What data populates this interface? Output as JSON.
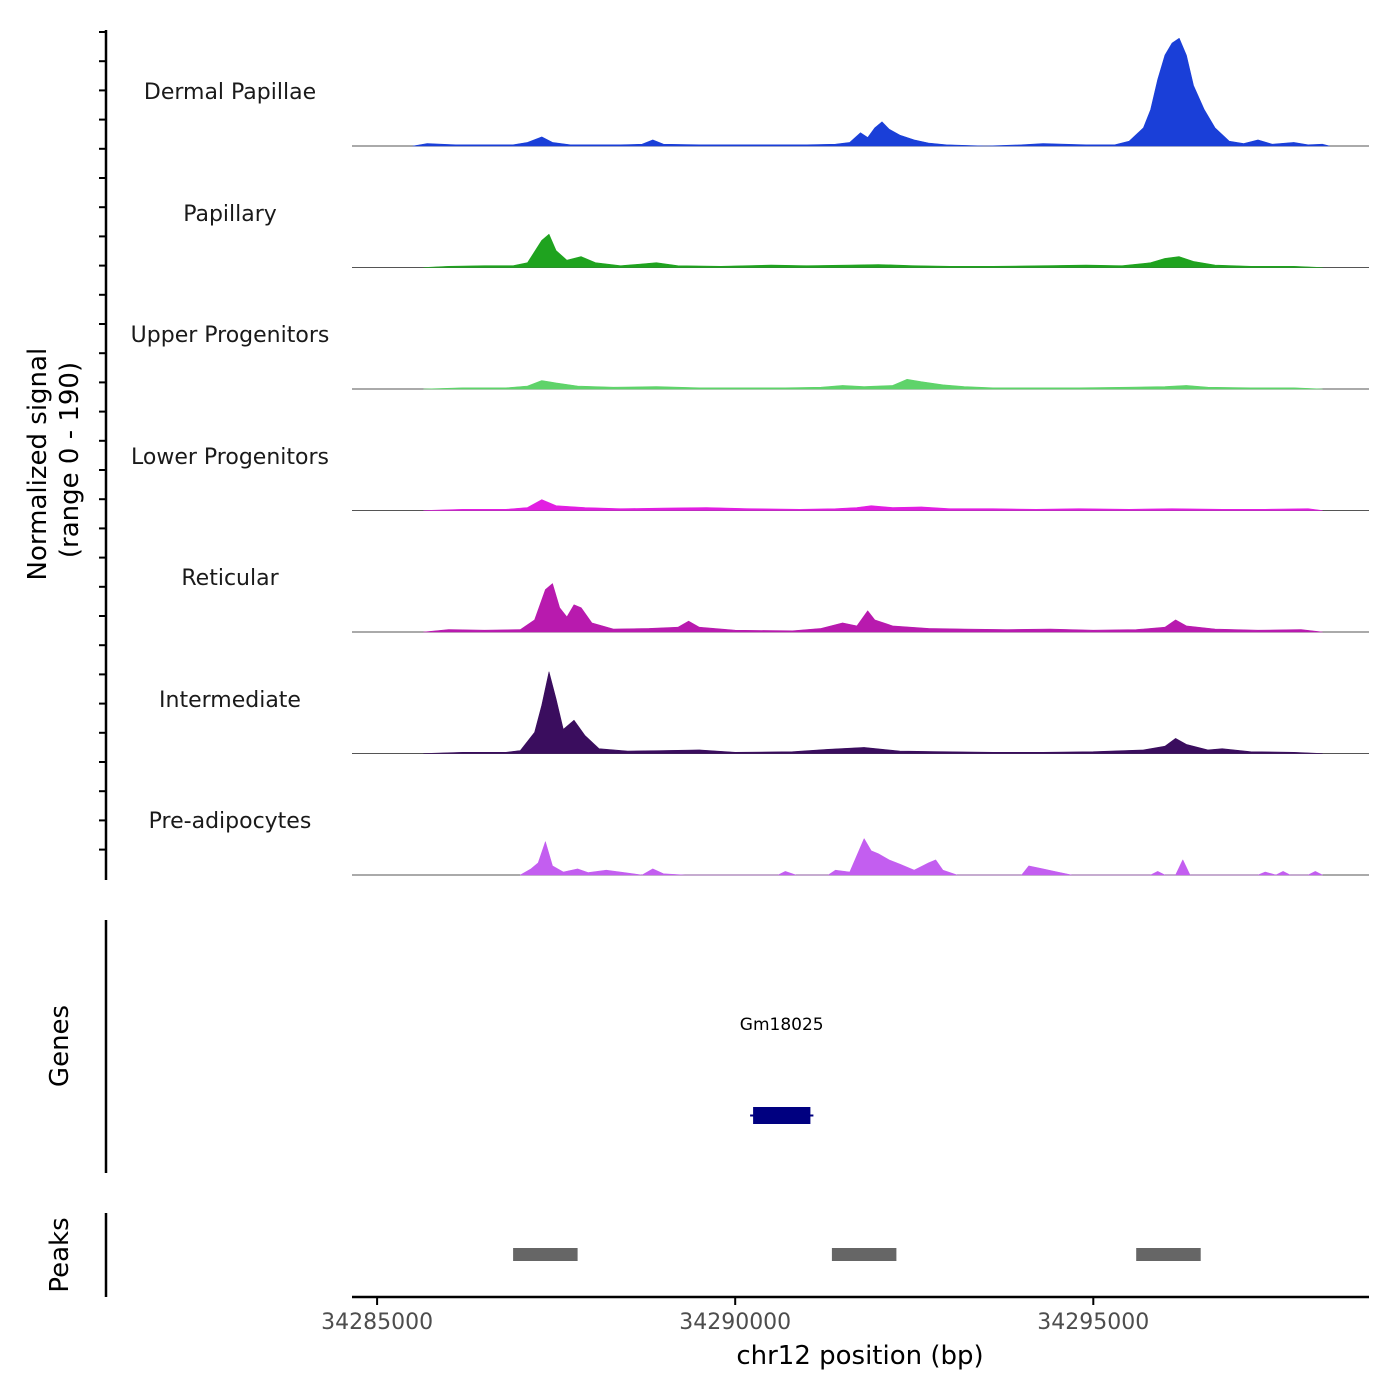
{
  "chart_data": {
    "type": "area",
    "title": "",
    "ylabel_line1": "Normalized signal",
    "ylabel_line2": "(range 0 - 190)",
    "xlabel": "chr12 position (bp)",
    "chromosome": "chr12",
    "xlim": [
      34284650,
      34298850
    ],
    "ylim": [
      0,
      190
    ],
    "x_ticks": [
      34285000,
      34290000,
      34295000
    ],
    "x_tick_labels": [
      "34285000",
      "34290000",
      "34295000"
    ],
    "tracks": [
      {
        "name": "Dermal Papillae",
        "color": "#1a3fd8",
        "points": [
          [
            34285500,
            0
          ],
          [
            34285700,
            4
          ],
          [
            34285900,
            3
          ],
          [
            34286100,
            2
          ],
          [
            34286500,
            2
          ],
          [
            34286900,
            2
          ],
          [
            34287100,
            6
          ],
          [
            34287300,
            15
          ],
          [
            34287450,
            6
          ],
          [
            34287700,
            2
          ],
          [
            34288000,
            2
          ],
          [
            34288400,
            2
          ],
          [
            34288700,
            3
          ],
          [
            34288850,
            10
          ],
          [
            34289000,
            3
          ],
          [
            34289500,
            2
          ],
          [
            34290000,
            2
          ],
          [
            34290500,
            2
          ],
          [
            34291000,
            2
          ],
          [
            34291400,
            3
          ],
          [
            34291600,
            6
          ],
          [
            34291750,
            22
          ],
          [
            34291850,
            14
          ],
          [
            34291950,
            30
          ],
          [
            34292050,
            40
          ],
          [
            34292150,
            28
          ],
          [
            34292300,
            18
          ],
          [
            34292500,
            10
          ],
          [
            34292700,
            5
          ],
          [
            34292950,
            2
          ],
          [
            34293500,
            0
          ],
          [
            34294000,
            2
          ],
          [
            34294300,
            4
          ],
          [
            34294600,
            3
          ],
          [
            34294900,
            2
          ],
          [
            34295300,
            2
          ],
          [
            34295500,
            8
          ],
          [
            34295700,
            30
          ],
          [
            34295800,
            60
          ],
          [
            34295900,
            110
          ],
          [
            34296000,
            150
          ],
          [
            34296100,
            170
          ],
          [
            34296200,
            178
          ],
          [
            34296300,
            150
          ],
          [
            34296400,
            100
          ],
          [
            34296550,
            60
          ],
          [
            34296700,
            30
          ],
          [
            34296900,
            8
          ],
          [
            34297100,
            4
          ],
          [
            34297300,
            10
          ],
          [
            34297500,
            3
          ],
          [
            34297800,
            6
          ],
          [
            34298000,
            2
          ],
          [
            34298200,
            3
          ],
          [
            34298300,
            0
          ]
        ]
      },
      {
        "name": "Papillary",
        "color": "#1fa31f",
        "points": [
          [
            34285650,
            0
          ],
          [
            34286000,
            2
          ],
          [
            34286500,
            3
          ],
          [
            34286900,
            3
          ],
          [
            34287100,
            8
          ],
          [
            34287300,
            45
          ],
          [
            34287400,
            55
          ],
          [
            34287500,
            28
          ],
          [
            34287650,
            12
          ],
          [
            34287850,
            18
          ],
          [
            34288050,
            8
          ],
          [
            34288400,
            3
          ],
          [
            34288900,
            8
          ],
          [
            34289200,
            3
          ],
          [
            34289800,
            2
          ],
          [
            34290500,
            4
          ],
          [
            34291000,
            3
          ],
          [
            34291600,
            4
          ],
          [
            34292000,
            5
          ],
          [
            34292500,
            3
          ],
          [
            34293000,
            2
          ],
          [
            34293600,
            2
          ],
          [
            34294300,
            3
          ],
          [
            34294900,
            4
          ],
          [
            34295400,
            3
          ],
          [
            34295800,
            8
          ],
          [
            34296000,
            15
          ],
          [
            34296200,
            18
          ],
          [
            34296400,
            10
          ],
          [
            34296700,
            4
          ],
          [
            34297200,
            2
          ],
          [
            34297800,
            2
          ],
          [
            34298200,
            0
          ]
        ]
      },
      {
        "name": "Upper Progenitors",
        "color": "#5fd36a",
        "points": [
          [
            34285650,
            0
          ],
          [
            34286200,
            2
          ],
          [
            34286800,
            2
          ],
          [
            34287100,
            5
          ],
          [
            34287300,
            14
          ],
          [
            34287500,
            10
          ],
          [
            34287800,
            5
          ],
          [
            34288300,
            3
          ],
          [
            34288900,
            4
          ],
          [
            34289500,
            2
          ],
          [
            34290000,
            2
          ],
          [
            34290700,
            2
          ],
          [
            34291200,
            3
          ],
          [
            34291500,
            6
          ],
          [
            34291800,
            4
          ],
          [
            34292200,
            6
          ],
          [
            34292400,
            16
          ],
          [
            34292600,
            12
          ],
          [
            34292900,
            7
          ],
          [
            34293200,
            4
          ],
          [
            34293600,
            2
          ],
          [
            34294200,
            2
          ],
          [
            34294800,
            2
          ],
          [
            34295500,
            3
          ],
          [
            34296000,
            4
          ],
          [
            34296300,
            6
          ],
          [
            34296600,
            3
          ],
          [
            34297200,
            2
          ],
          [
            34297800,
            2
          ],
          [
            34298200,
            0
          ]
        ]
      },
      {
        "name": "Lower Progenitors",
        "color": "#e21ee2",
        "points": [
          [
            34285650,
            0
          ],
          [
            34286200,
            2
          ],
          [
            34286800,
            2
          ],
          [
            34287100,
            5
          ],
          [
            34287300,
            18
          ],
          [
            34287500,
            8
          ],
          [
            34287900,
            5
          ],
          [
            34288400,
            3
          ],
          [
            34289000,
            4
          ],
          [
            34289600,
            5
          ],
          [
            34290200,
            3
          ],
          [
            34290900,
            2
          ],
          [
            34291400,
            3
          ],
          [
            34291700,
            5
          ],
          [
            34291900,
            8
          ],
          [
            34292200,
            5
          ],
          [
            34292600,
            6
          ],
          [
            34293000,
            3
          ],
          [
            34293600,
            3
          ],
          [
            34294200,
            2
          ],
          [
            34294800,
            3
          ],
          [
            34295500,
            2
          ],
          [
            34296100,
            3
          ],
          [
            34296800,
            2
          ],
          [
            34297400,
            2
          ],
          [
            34298000,
            3
          ],
          [
            34298200,
            0
          ]
        ]
      },
      {
        "name": "Reticular",
        "color": "#b81aae",
        "points": [
          [
            34285650,
            0
          ],
          [
            34286000,
            4
          ],
          [
            34286500,
            3
          ],
          [
            34287000,
            4
          ],
          [
            34287200,
            20
          ],
          [
            34287350,
            70
          ],
          [
            34287450,
            80
          ],
          [
            34287550,
            40
          ],
          [
            34287650,
            25
          ],
          [
            34287750,
            45
          ],
          [
            34287850,
            40
          ],
          [
            34288000,
            15
          ],
          [
            34288300,
            5
          ],
          [
            34288800,
            6
          ],
          [
            34289200,
            8
          ],
          [
            34289350,
            18
          ],
          [
            34289500,
            8
          ],
          [
            34290000,
            3
          ],
          [
            34290800,
            2
          ],
          [
            34291200,
            6
          ],
          [
            34291500,
            15
          ],
          [
            34291700,
            10
          ],
          [
            34291850,
            35
          ],
          [
            34291950,
            20
          ],
          [
            34292200,
            10
          ],
          [
            34292700,
            6
          ],
          [
            34293200,
            5
          ],
          [
            34293800,
            4
          ],
          [
            34294400,
            5
          ],
          [
            34295000,
            3
          ],
          [
            34295600,
            4
          ],
          [
            34296000,
            8
          ],
          [
            34296150,
            20
          ],
          [
            34296300,
            10
          ],
          [
            34296700,
            5
          ],
          [
            34297300,
            3
          ],
          [
            34297900,
            4
          ],
          [
            34298200,
            0
          ]
        ]
      },
      {
        "name": "Intermediate",
        "color": "#3a0d5e",
        "points": [
          [
            34285650,
            0
          ],
          [
            34286200,
            2
          ],
          [
            34286800,
            2
          ],
          [
            34287000,
            5
          ],
          [
            34287200,
            35
          ],
          [
            34287300,
            80
          ],
          [
            34287400,
            135
          ],
          [
            34287500,
            90
          ],
          [
            34287600,
            40
          ],
          [
            34287750,
            55
          ],
          [
            34287900,
            30
          ],
          [
            34288100,
            8
          ],
          [
            34288500,
            4
          ],
          [
            34289000,
            5
          ],
          [
            34289500,
            6
          ],
          [
            34290000,
            2
          ],
          [
            34290800,
            3
          ],
          [
            34291300,
            7
          ],
          [
            34291800,
            10
          ],
          [
            34292300,
            4
          ],
          [
            34292900,
            3
          ],
          [
            34293600,
            2
          ],
          [
            34294300,
            2
          ],
          [
            34295000,
            3
          ],
          [
            34295700,
            6
          ],
          [
            34296000,
            12
          ],
          [
            34296150,
            25
          ],
          [
            34296300,
            15
          ],
          [
            34296600,
            6
          ],
          [
            34296800,
            8
          ],
          [
            34297200,
            3
          ],
          [
            34297800,
            2
          ],
          [
            34298200,
            0
          ]
        ]
      },
      {
        "name": "Pre-adipocytes",
        "color": "#c35ef0",
        "points": [
          [
            34287000,
            0
          ],
          [
            34287150,
            10
          ],
          [
            34287250,
            20
          ],
          [
            34287350,
            55
          ],
          [
            34287450,
            15
          ],
          [
            34287600,
            5
          ],
          [
            34287800,
            10
          ],
          [
            34287950,
            4
          ],
          [
            34288200,
            8
          ],
          [
            34288450,
            4
          ],
          [
            34288700,
            0
          ],
          [
            34288850,
            10
          ],
          [
            34289000,
            2
          ],
          [
            34289300,
            0
          ],
          [
            34290600,
            0
          ],
          [
            34290700,
            6
          ],
          [
            34290850,
            0
          ],
          [
            34291300,
            0
          ],
          [
            34291400,
            8
          ],
          [
            34291600,
            5
          ],
          [
            34291800,
            60
          ],
          [
            34291900,
            40
          ],
          [
            34292000,
            35
          ],
          [
            34292150,
            25
          ],
          [
            34292300,
            18
          ],
          [
            34292500,
            8
          ],
          [
            34292700,
            20
          ],
          [
            34292800,
            25
          ],
          [
            34292900,
            8
          ],
          [
            34293100,
            0
          ],
          [
            34294000,
            0
          ],
          [
            34294100,
            15
          ],
          [
            34294300,
            10
          ],
          [
            34294500,
            5
          ],
          [
            34294700,
            0
          ],
          [
            34295800,
            0
          ],
          [
            34295900,
            6
          ],
          [
            34296000,
            0
          ],
          [
            34296150,
            0
          ],
          [
            34296250,
            25
          ],
          [
            34296350,
            0
          ],
          [
            34297300,
            0
          ],
          [
            34297400,
            5
          ],
          [
            34297550,
            0
          ],
          [
            34297650,
            6
          ],
          [
            34297750,
            0
          ],
          [
            34298000,
            0
          ],
          [
            34298100,
            6
          ],
          [
            34298200,
            0
          ]
        ]
      }
    ],
    "genes_track_label": "Genes",
    "genes": [
      {
        "name": "Gm18025",
        "start": 34290250,
        "end": 34291050,
        "color": "#000080"
      }
    ],
    "peaks_track_label": "Peaks",
    "peaks": [
      {
        "start": 34286900,
        "end": 34287800
      },
      {
        "start": 34291350,
        "end": 34292250
      },
      {
        "start": 34295600,
        "end": 34296500
      }
    ]
  }
}
